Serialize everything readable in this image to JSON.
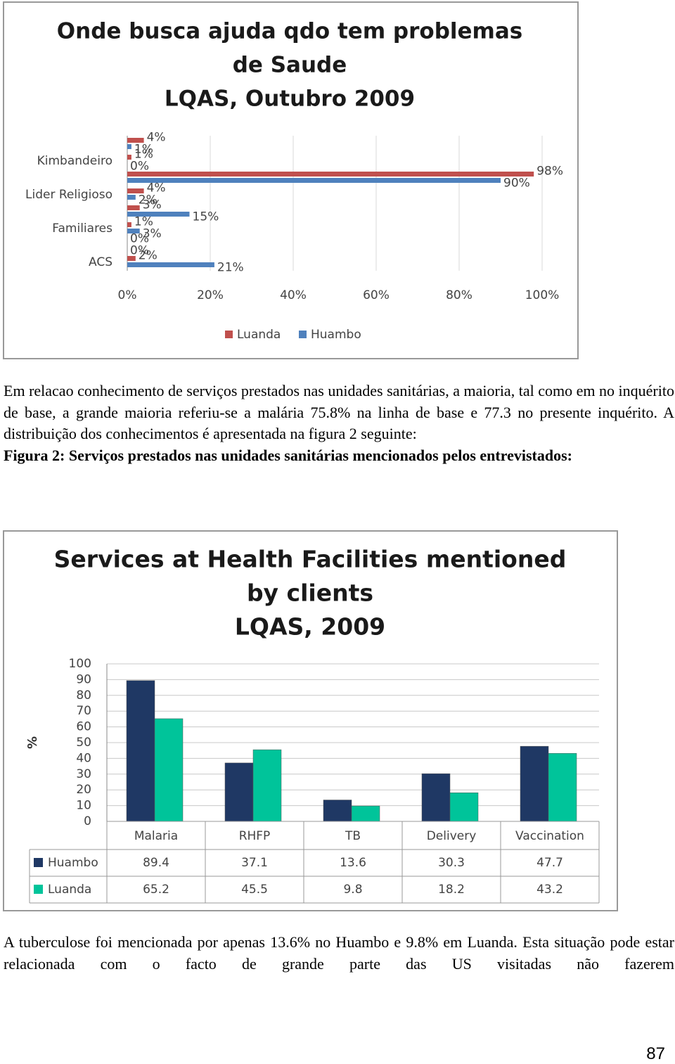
{
  "chart_data": [
    {
      "type": "bar",
      "orientation": "horizontal",
      "title": [
        "Onde busca ajuda qdo tem problemas",
        "de Saude",
        "LQAS, Outubro 2009"
      ],
      "categories": [
        null,
        "Kimbandeiro",
        null,
        "Lider Religioso",
        null,
        "Familiares",
        null,
        "ACS"
      ],
      "series": [
        {
          "name": "Luanda",
          "color": "#c0504d",
          "values": [
            4,
            1,
            98,
            4,
            3,
            1,
            0,
            2
          ],
          "value_labels": [
            "4%",
            "1%",
            "98%",
            "4%",
            "3%",
            "1%",
            "0%",
            "2%"
          ]
        },
        {
          "name": "Huambo",
          "color": "#4f81bd",
          "values": [
            1,
            0,
            90,
            2,
            15,
            3,
            0,
            21
          ],
          "value_labels": [
            "1%",
            "0%",
            "90%",
            "2%",
            "15%",
            "3%",
            "0%",
            "21%"
          ]
        }
      ],
      "xlim": [
        0,
        100
      ],
      "xticks": [
        {
          "value": 0,
          "label": "0%"
        },
        {
          "value": 20,
          "label": "20%"
        },
        {
          "value": 40,
          "label": "40%"
        },
        {
          "value": 60,
          "label": "60%"
        },
        {
          "value": 80,
          "label": "80%"
        },
        {
          "value": 100,
          "label": "100%"
        }
      ],
      "grid": true,
      "legend": "bottom"
    },
    {
      "type": "bar",
      "title": [
        "Services at Health Facilities mentioned",
        "by clients",
        "LQAS, 2009"
      ],
      "y_label": "%",
      "categories": [
        "Malaria",
        "RHFP",
        "TB",
        "Delivery",
        "Vaccination"
      ],
      "series": [
        {
          "name": "Huambo",
          "color": "#1f3864",
          "values": [
            89.4,
            37.1,
            13.6,
            30.3,
            47.7
          ]
        },
        {
          "name": "Luanda",
          "color": "#00c49a",
          "values": [
            65.2,
            45.5,
            9.8,
            18.2,
            43.2
          ]
        }
      ],
      "ylim": [
        0,
        100
      ],
      "yticks": [
        0,
        10,
        20,
        30,
        40,
        50,
        60,
        70,
        80,
        90,
        100
      ],
      "grid": true,
      "data_table": true
    }
  ],
  "document": {
    "paragraph_1": "Em relacao conhecimento de serviços prestados nas unidades sanitárias, a maioria, tal como em no inquérito de base, a grande maioria referiu-se a malária 75.8% na linha de base e 77.3 no presente inquérito. A distribuição dos conhecimentos é apresentada na figura 2 seguinte:",
    "figure_caption": "Figura 2: Serviços prestados nas unidades sanitárias mencionados pelos entrevistados:",
    "paragraph_2": "A tuberculose foi mencionada por apenas 13.6% no Huambo e 9.8% em Luanda. Esta situação pode estar relacionada com o facto de grande parte das US visitadas não fazerem",
    "page_number": 87
  }
}
